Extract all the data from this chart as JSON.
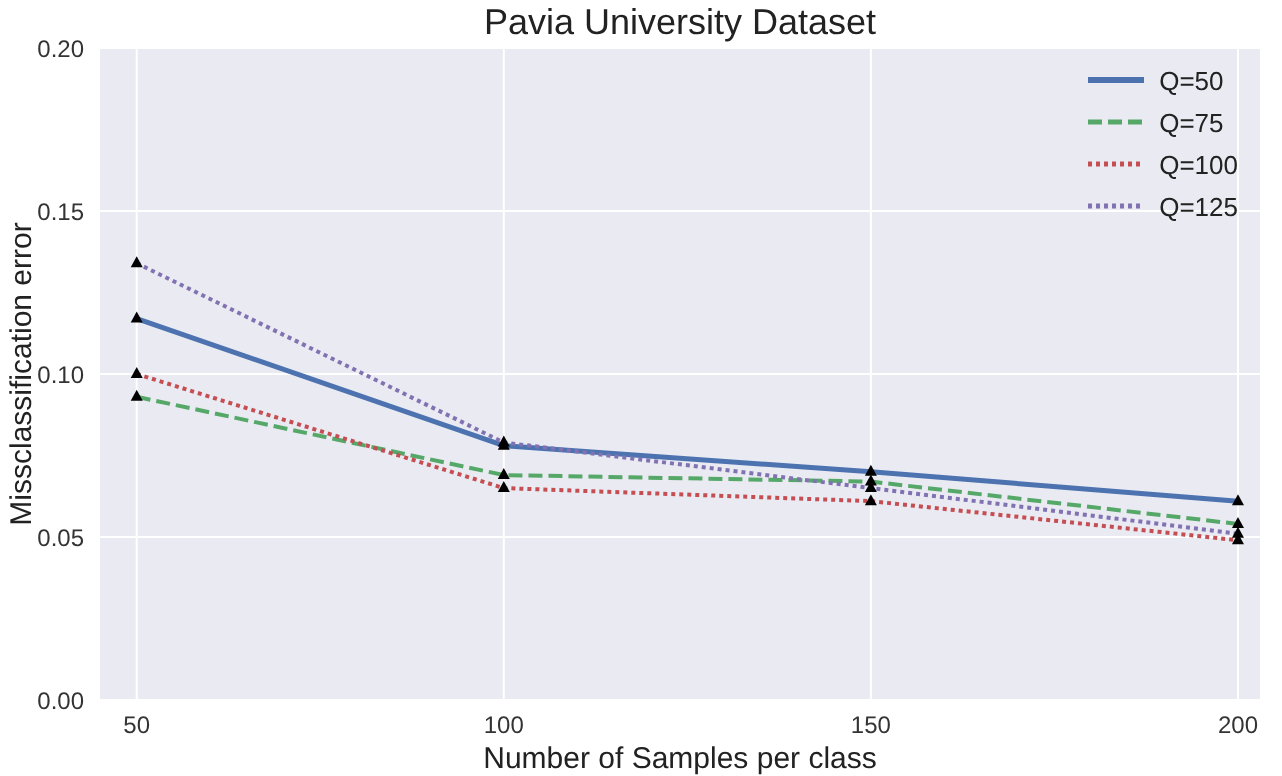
{
  "chart_data": {
    "type": "line",
    "title": "Pavia University Dataset",
    "xlabel": "Number of Samples per class",
    "ylabel": "Missclassification error",
    "x": [
      50,
      100,
      150,
      200
    ],
    "series": [
      {
        "name": "Q=50",
        "color": "#4c72b0",
        "line_style": "solid",
        "values": [
          0.117,
          0.078,
          0.07,
          0.061
        ]
      },
      {
        "name": "Q=75",
        "color": "#55a868",
        "line_style": "dashed",
        "values": [
          0.093,
          0.069,
          0.067,
          0.054
        ]
      },
      {
        "name": "Q=100",
        "color": "#c44e52",
        "line_style": "dotted",
        "values": [
          0.1,
          0.065,
          0.061,
          0.049
        ]
      },
      {
        "name": "Q=125",
        "color": "#8172b2",
        "line_style": "dotted",
        "values": [
          0.134,
          0.079,
          0.065,
          0.051
        ]
      }
    ],
    "xlim": [
      45,
      203
    ],
    "xticks": [
      50,
      100,
      150,
      200
    ],
    "ylim": [
      0,
      0.2
    ],
    "yticks": [
      {
        "value": 0,
        "label": "0.00"
      },
      {
        "value": 0.05,
        "label": "0.05"
      },
      {
        "value": 0.1,
        "label": "0.10"
      },
      {
        "value": 0.15,
        "label": "0.15"
      },
      {
        "value": 0.2,
        "label": "0.20"
      }
    ],
    "grid": true,
    "legend": "top right",
    "marker": "triangle"
  }
}
